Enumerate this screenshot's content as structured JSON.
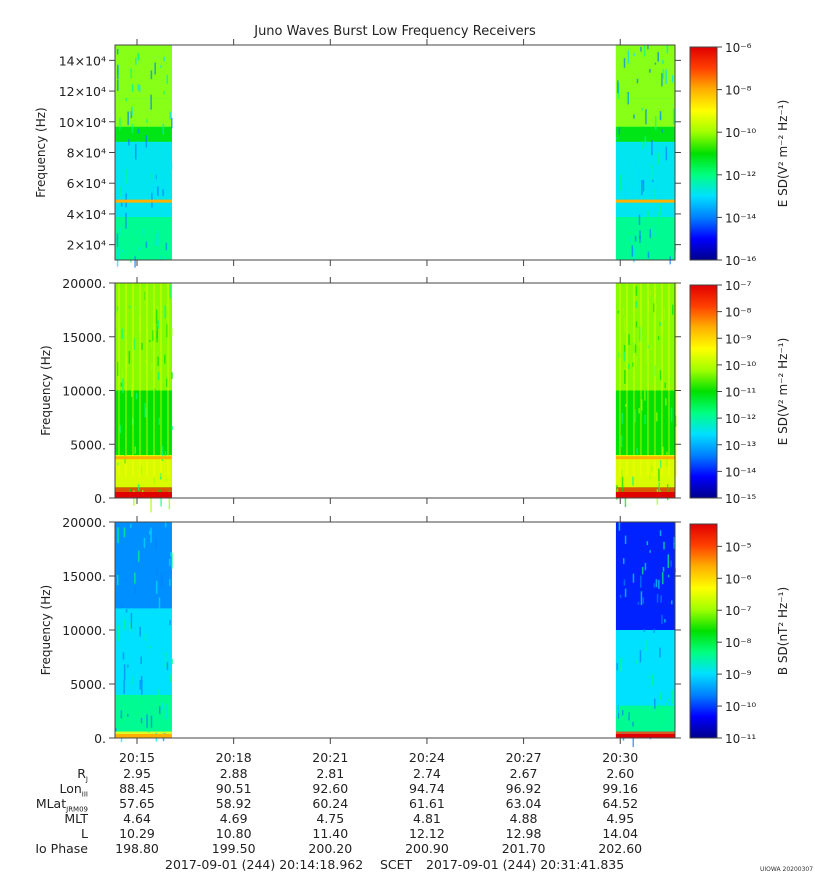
{
  "title": "Juno Waves Burst Low Frequency Receivers",
  "watermark": "UIOWA 20200307",
  "footer": {
    "start": "2017-09-01 (244) 20:14:18.962",
    "frame": "SCET",
    "end": "2017-09-01 (244) 20:31:41.835"
  },
  "time_ticks": [
    "20:15",
    "20:18",
    "20:21",
    "20:24",
    "20:27",
    "20:30"
  ],
  "ephemeris": {
    "rows": [
      {
        "label": "R",
        "sub": "J",
        "values": [
          "2.95",
          "2.88",
          "2.81",
          "2.74",
          "2.67",
          "2.60"
        ]
      },
      {
        "label": "Lon",
        "sub": "III",
        "values": [
          "88.45",
          "90.51",
          "92.60",
          "94.74",
          "96.92",
          "99.16"
        ]
      },
      {
        "label": "MLat",
        "sub": "JRM09",
        "values": [
          "57.65",
          "58.92",
          "60.24",
          "61.61",
          "63.04",
          "64.52"
        ]
      },
      {
        "label": "MLT",
        "sub": "",
        "values": [
          "4.64",
          "4.69",
          "4.75",
          "4.81",
          "4.88",
          "4.95"
        ]
      },
      {
        "label": "L",
        "sub": "",
        "values": [
          "10.29",
          "10.80",
          "11.40",
          "12.12",
          "12.98",
          "14.04"
        ]
      },
      {
        "label": "Io Phase",
        "sub": "",
        "values": [
          "198.80",
          "199.50",
          "200.20",
          "200.90",
          "201.70",
          "202.60"
        ]
      }
    ]
  },
  "chart_data": [
    {
      "type": "heatmap",
      "panel": "high-band electric spectrogram",
      "ylabel": "Frequency (Hz)",
      "y_ticks": [
        "2×10⁴",
        "4×10⁴",
        "6×10⁴",
        "8×10⁴",
        "10×10⁴",
        "12×10⁴",
        "14×10⁴"
      ],
      "y_tick_values": [
        20000,
        40000,
        60000,
        80000,
        100000,
        120000,
        140000
      ],
      "ylim": [
        10000,
        150000
      ],
      "colorbar_label": "E SD(V² m⁻² Hz⁻¹)",
      "colorbar_ticks": [
        "10⁻⁶",
        "10⁻⁸",
        "10⁻¹⁰",
        "10⁻¹²",
        "10⁻¹⁴",
        "10⁻¹⁶"
      ],
      "colorbar_range_log10": [
        -16,
        -6
      ],
      "data_intervals": [
        [
          "20:14:19",
          "20:16:05"
        ],
        [
          "20:29:52",
          "20:31:42"
        ]
      ],
      "features": "emission band below ~55 kHz, bright line near 48 kHz"
    },
    {
      "type": "heatmap",
      "panel": "low-band electric spectrogram",
      "ylabel": "Frequency (Hz)",
      "y_ticks": [
        "0.",
        "5000.",
        "10000.",
        "15000.",
        "20000."
      ],
      "y_tick_values": [
        0,
        5000,
        10000,
        15000,
        20000
      ],
      "ylim": [
        0,
        20000
      ],
      "colorbar_label": "E SD(V² m⁻² Hz⁻¹)",
      "colorbar_ticks": [
        "10⁻⁷",
        "10⁻⁸",
        "10⁻⁹",
        "10⁻¹⁰",
        "10⁻¹¹",
        "10⁻¹²",
        "10⁻¹³",
        "10⁻¹⁴",
        "10⁻¹⁵"
      ],
      "colorbar_range_log10": [
        -15,
        -7
      ],
      "data_intervals": [
        [
          "20:14:19",
          "20:16:05"
        ],
        [
          "20:29:52",
          "20:31:42"
        ]
      ],
      "features": "intense emission below ~1 kHz, bright line near 3.7 kHz"
    },
    {
      "type": "heatmap",
      "panel": "low-band magnetic spectrogram",
      "ylabel": "Frequency (Hz)",
      "y_ticks": [
        "0.",
        "5000.",
        "10000.",
        "15000.",
        "20000."
      ],
      "y_tick_values": [
        0,
        5000,
        10000,
        15000,
        20000
      ],
      "ylim": [
        0,
        20000
      ],
      "colorbar_label": "B SD(nT² Hz⁻¹)",
      "colorbar_ticks": [
        "10⁻⁵",
        "10⁻⁶",
        "10⁻⁷",
        "10⁻⁸",
        "10⁻⁹",
        "10⁻¹⁰",
        "10⁻¹¹"
      ],
      "colorbar_range_log10": [
        -11,
        -4.3
      ],
      "data_intervals": [
        [
          "20:14:19",
          "20:16:05"
        ],
        [
          "20:29:52",
          "20:31:42"
        ]
      ],
      "features": "enhanced power below ~1 kHz"
    }
  ],
  "colors": {
    "scale": [
      "#00008b",
      "#0000ff",
      "#0080ff",
      "#00e0ff",
      "#00ff80",
      "#00e000",
      "#a0ff00",
      "#ffff00",
      "#ffb000",
      "#ff4000",
      "#e00000"
    ]
  }
}
